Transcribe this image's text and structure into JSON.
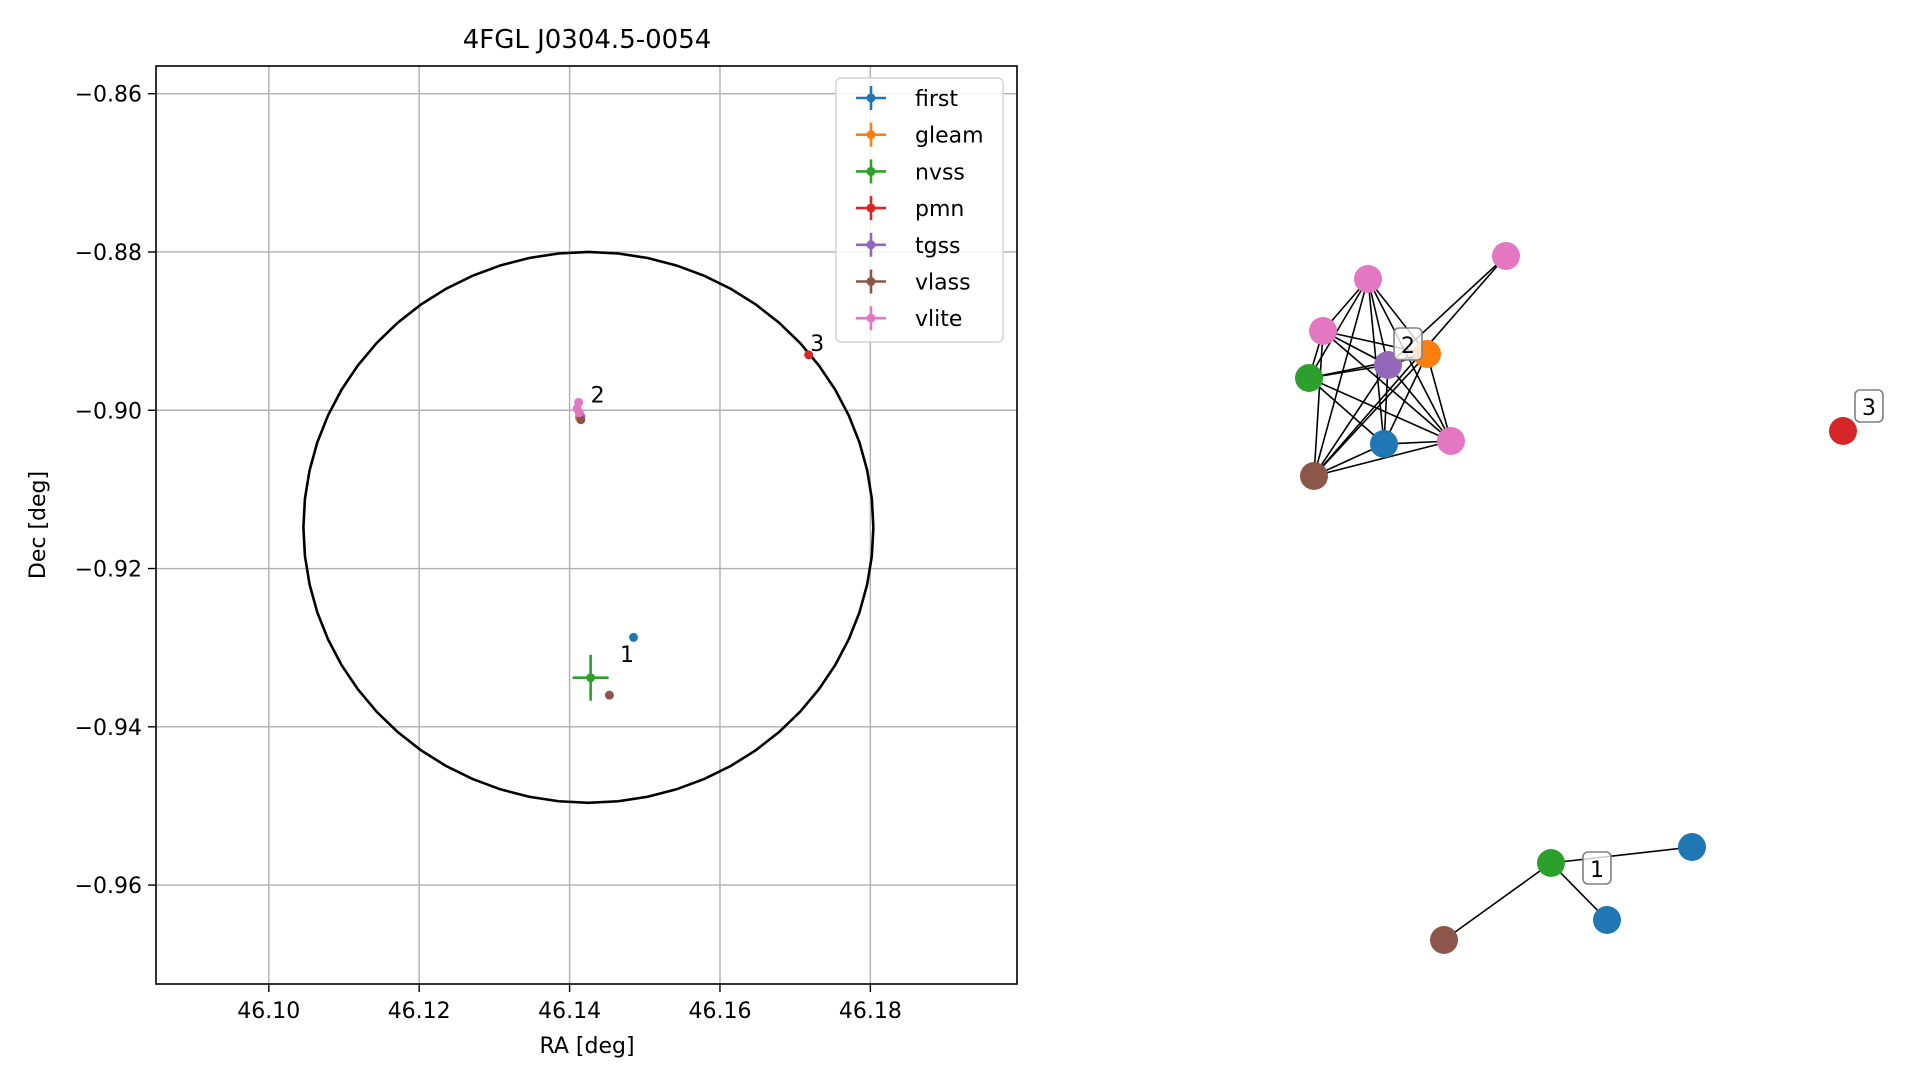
{
  "chart_data": [
    {
      "type": "scatter",
      "title": "4FGL J0304.5-0054",
      "xlabel": "RA [deg]",
      "ylabel": "Dec [deg]",
      "xlim": [
        46.085,
        46.1995
      ],
      "ylim": [
        -0.9725,
        -0.8565
      ],
      "xticks": [
        46.1,
        46.12,
        46.14,
        46.16,
        46.18
      ],
      "xtick_labels": [
        "46.10",
        "46.12",
        "46.14",
        "46.16",
        "46.18"
      ],
      "yticks": [
        -0.86,
        -0.88,
        -0.9,
        -0.92,
        -0.94,
        -0.96
      ],
      "ytick_labels": [
        "−0.86",
        "−0.88",
        "−0.90",
        "−0.92",
        "−0.94",
        "−0.96"
      ],
      "grid": true,
      "legend_position": "top-right",
      "circle": {
        "center": [
          46.1425,
          -0.9148
        ],
        "rx_deg": 0.0379,
        "ry_deg": 0.0348
      },
      "series": [
        {
          "name": "first",
          "color": "#1f77b4",
          "points": [
            {
              "x": 46.1485,
              "y": -0.9287,
              "xerr": 0,
              "yerr": 0
            }
          ]
        },
        {
          "name": "gleam",
          "color": "#ff7f0e",
          "points": [
            {
              "x": 46.1413,
              "y": -0.9009,
              "xerr": 0,
              "yerr": 0
            }
          ]
        },
        {
          "name": "nvss",
          "color": "#2ca02c",
          "points": [
            {
              "x": 46.1428,
              "y": -0.9338,
              "xerr": 0.0024,
              "yerr": 0.0029
            }
          ]
        },
        {
          "name": "pmn",
          "color": "#d62728",
          "points": [
            {
              "x": 46.1718,
              "y": -0.893,
              "xerr": 0,
              "yerr": 0
            }
          ]
        },
        {
          "name": "tgss",
          "color": "#9467bd",
          "points": [
            {
              "x": 46.1415,
              "y": -0.9008,
              "xerr": 0,
              "yerr": 0
            }
          ]
        },
        {
          "name": "vlass",
          "color": "#8c564b",
          "points": [
            {
              "x": 46.1453,
              "y": -0.936,
              "xerr": 0,
              "yerr": 0
            },
            {
              "x": 46.1415,
              "y": -0.9012,
              "xerr": 0,
              "yerr": 0
            }
          ]
        },
        {
          "name": "vlite",
          "color": "#e377c2",
          "points": [
            {
              "x": 46.1412,
              "y": -0.899,
              "xerr": 0,
              "yerr": 0
            },
            {
              "x": 46.141,
              "y": -0.8998,
              "xerr": 0,
              "yerr": 0
            },
            {
              "x": 46.1413,
              "y": -0.9003,
              "xerr": 0,
              "yerr": 0
            }
          ]
        }
      ],
      "annotations": [
        {
          "text": "1",
          "x": 46.1467,
          "y": -0.9318
        },
        {
          "text": "2",
          "x": 46.1428,
          "y": -0.899
        },
        {
          "text": "3",
          "x": 46.172,
          "y": -0.8925
        }
      ]
    },
    {
      "type": "network",
      "nodes": [
        {
          "id": "a",
          "color": "#1f77b4"
        },
        {
          "id": "b",
          "color": "#ff7f0e"
        },
        {
          "id": "c",
          "color": "#2ca02c"
        },
        {
          "id": "d",
          "color": "#9467bd"
        },
        {
          "id": "e",
          "color": "#8c564b"
        },
        {
          "id": "f",
          "color": "#e377c2"
        },
        {
          "id": "g",
          "color": "#e377c2"
        },
        {
          "id": "h",
          "color": "#e377c2"
        },
        {
          "id": "i",
          "color": "#e377c2"
        },
        {
          "id": "j",
          "color": "#d62728"
        },
        {
          "id": "k",
          "color": "#2ca02c"
        },
        {
          "id": "l",
          "color": "#1f77b4"
        },
        {
          "id": "m",
          "color": "#1f77b4"
        },
        {
          "id": "n",
          "color": "#8c564b"
        }
      ],
      "edges": [
        [
          "c",
          "d"
        ],
        [
          "c",
          "b"
        ],
        [
          "c",
          "f"
        ],
        [
          "c",
          "g"
        ],
        [
          "c",
          "i"
        ],
        [
          "c",
          "a"
        ],
        [
          "d",
          "b"
        ],
        [
          "d",
          "f"
        ],
        [
          "d",
          "g"
        ],
        [
          "d",
          "h"
        ],
        [
          "d",
          "a"
        ],
        [
          "d",
          "i"
        ],
        [
          "d",
          "e"
        ],
        [
          "b",
          "f"
        ],
        [
          "b",
          "g"
        ],
        [
          "b",
          "e"
        ],
        [
          "b",
          "a"
        ],
        [
          "b",
          "i"
        ],
        [
          "f",
          "g"
        ],
        [
          "f",
          "e"
        ],
        [
          "f",
          "a"
        ],
        [
          "f",
          "i"
        ],
        [
          "g",
          "e"
        ],
        [
          "g",
          "i"
        ],
        [
          "h",
          "e"
        ],
        [
          "e",
          "a"
        ],
        [
          "e",
          "i"
        ],
        [
          "a",
          "i"
        ],
        [
          "k",
          "l"
        ],
        [
          "k",
          "m"
        ],
        [
          "k",
          "n"
        ]
      ],
      "cluster_labels": [
        {
          "text": "1",
          "near": "k"
        },
        {
          "text": "2",
          "near": "d"
        },
        {
          "text": "3",
          "near": "j"
        }
      ]
    }
  ]
}
